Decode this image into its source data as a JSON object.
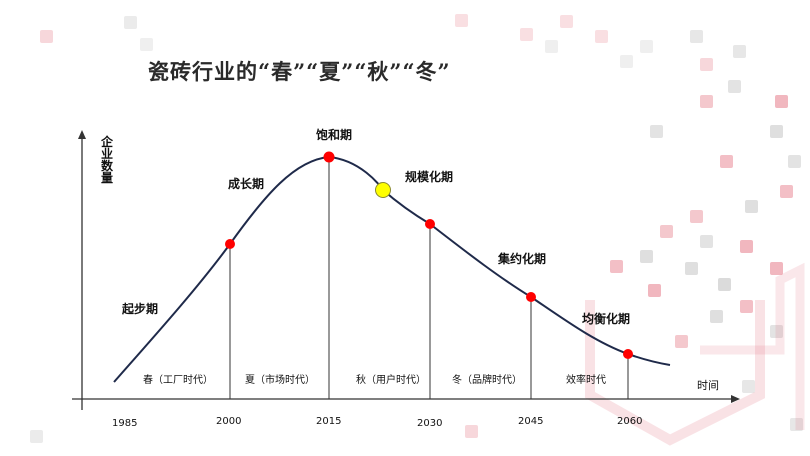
{
  "title": "瓷砖行业的“春”“夏”“秋”“冬”",
  "y_axis_label": "企业数量",
  "x_axis_label": "时间",
  "stages": {
    "startup": "起步期",
    "growth": "成长期",
    "saturation": "饱和期",
    "scale": "规模化期",
    "intensive": "集约化期",
    "balance": "均衡化期"
  },
  "eras": {
    "spring": "春（工厂时代）",
    "summer": "夏（市场时代）",
    "autumn": "秋（用户时代）",
    "winter": "冬（品牌时代）",
    "efficiency": "效率时代"
  },
  "years": [
    "1985",
    "2000",
    "2015",
    "2030",
    "2045",
    "2060"
  ],
  "colors": {
    "curve": "#1f2a4a",
    "point": "#ff0000",
    "highlight_point": "#ffff00",
    "axis": "#333333",
    "deco_red": "#e06070",
    "deco_gray": "#b0b0b0"
  }
}
